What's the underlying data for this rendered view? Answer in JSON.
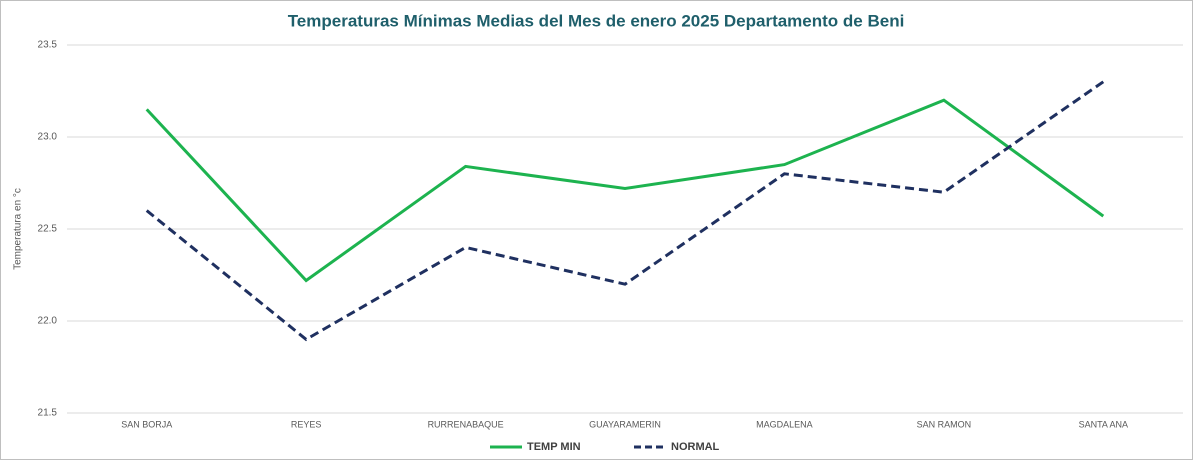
{
  "chart_data": {
    "type": "line",
    "title": "Temperaturas Mínimas Medias del Mes de enero 2025 Departamento de Beni",
    "y_label": "Temperatura en °c",
    "categories": [
      "SAN BORJA",
      "REYES",
      "RURRENABAQUE",
      "GUAYARAMERIN",
      "MAGDALENA",
      "SAN RAMON",
      "SANTA ANA"
    ],
    "series": [
      {
        "name": "TEMP MIN",
        "color": "#1db34f",
        "dashed": false,
        "values": [
          23.15,
          22.22,
          22.84,
          22.72,
          22.85,
          23.2,
          22.57
        ]
      },
      {
        "name": "NORMAL",
        "color": "#1f3060",
        "dashed": true,
        "values": [
          22.6,
          21.9,
          22.4,
          22.2,
          22.8,
          22.7,
          23.3
        ]
      }
    ],
    "ylim": [
      21.5,
      23.5
    ],
    "yticks": [
      {
        "value": 21.5,
        "label": "21.5"
      },
      {
        "value": 22,
        "label": "22.0"
      },
      22.5,
      {
        "value": 23,
        "label": "23.0"
      },
      23.5
    ],
    "grid": true,
    "legend": "bottom"
  }
}
